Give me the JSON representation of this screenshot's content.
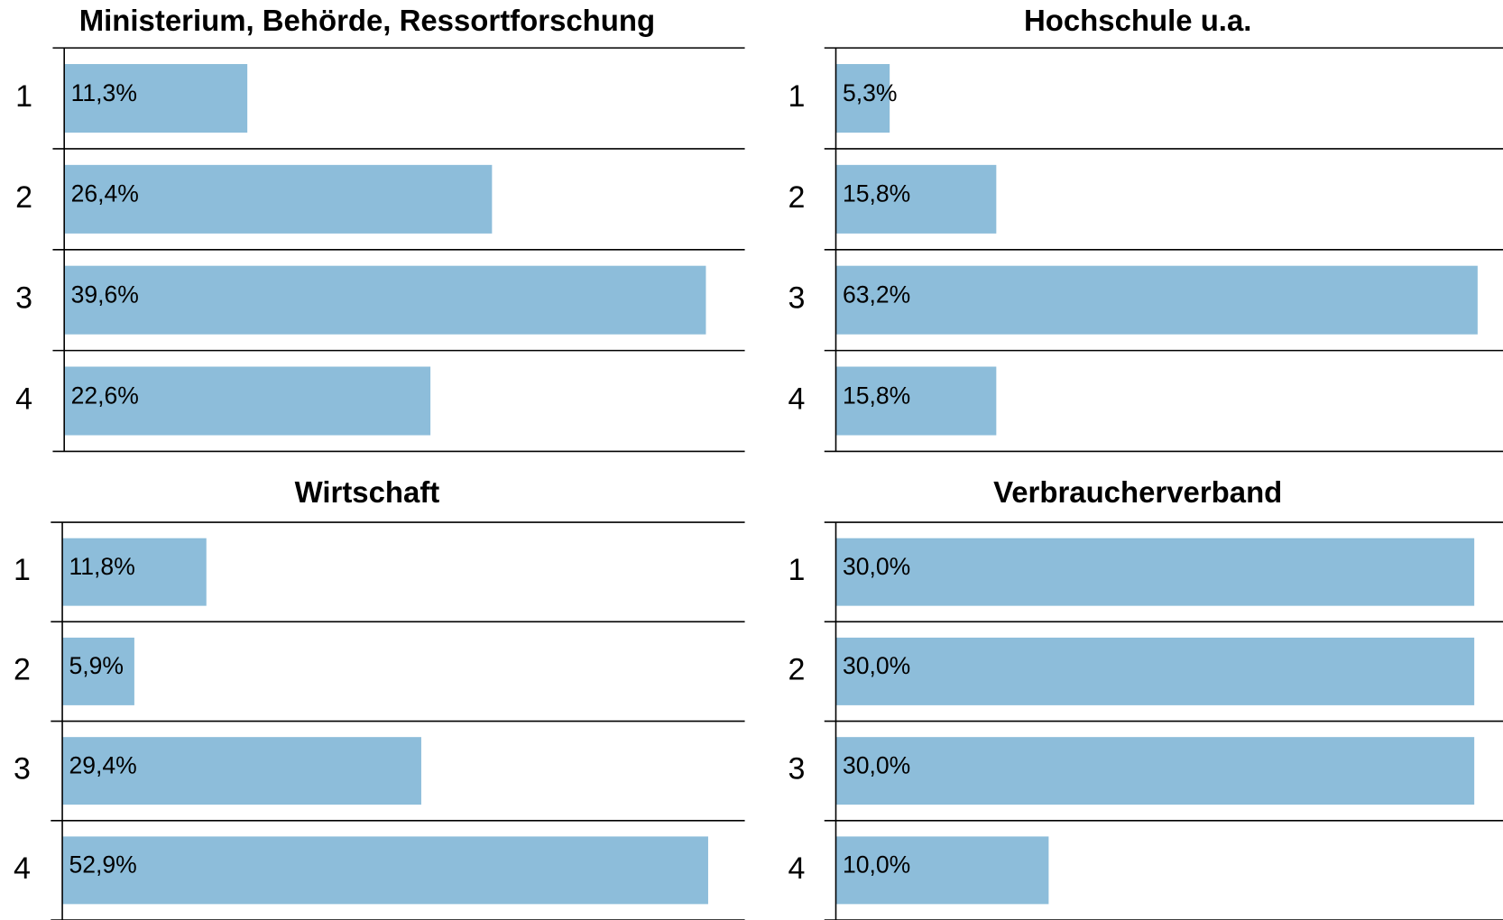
{
  "chart_data": [
    {
      "type": "bar",
      "orientation": "horizontal",
      "title": "Ministerium, Behörde, Ressortforschung",
      "categories": [
        "1",
        "2",
        "3",
        "4"
      ],
      "values": [
        11.3,
        26.4,
        39.6,
        22.6
      ],
      "value_labels": [
        "11,3%",
        "26,4%",
        "39,6%",
        "22,6%"
      ],
      "color": "#8dbdda",
      "xlim": [
        0,
        42
      ]
    },
    {
      "type": "bar",
      "orientation": "horizontal",
      "title": "Hochschule u.a.",
      "categories": [
        "1",
        "2",
        "3",
        "4"
      ],
      "values": [
        5.3,
        15.8,
        63.2,
        15.8
      ],
      "value_labels": [
        "5,3%",
        "15,8%",
        "63,2%",
        "15,8%"
      ],
      "color": "#8dbdda",
      "xlim": [
        0,
        65.7
      ]
    },
    {
      "type": "bar",
      "orientation": "horizontal",
      "title": "Wirtschaft",
      "categories": [
        "1",
        "2",
        "3",
        "4"
      ],
      "values": [
        11.8,
        5.9,
        29.4,
        52.9
      ],
      "value_labels": [
        "11,8%",
        "5,9%",
        "29,4%",
        "52,9%"
      ],
      "color": "#8dbdda",
      "xlim": [
        0,
        55.9
      ]
    },
    {
      "type": "bar",
      "orientation": "horizontal",
      "title": "Verbraucherverband",
      "categories": [
        "1",
        "2",
        "3",
        "4"
      ],
      "values": [
        30.0,
        30.0,
        30.0,
        10.0
      ],
      "value_labels": [
        "30,0%",
        "30,0%",
        "30,0%",
        "10,0%"
      ],
      "color": "#8dbdda",
      "xlim": [
        0,
        31.35
      ]
    }
  ]
}
